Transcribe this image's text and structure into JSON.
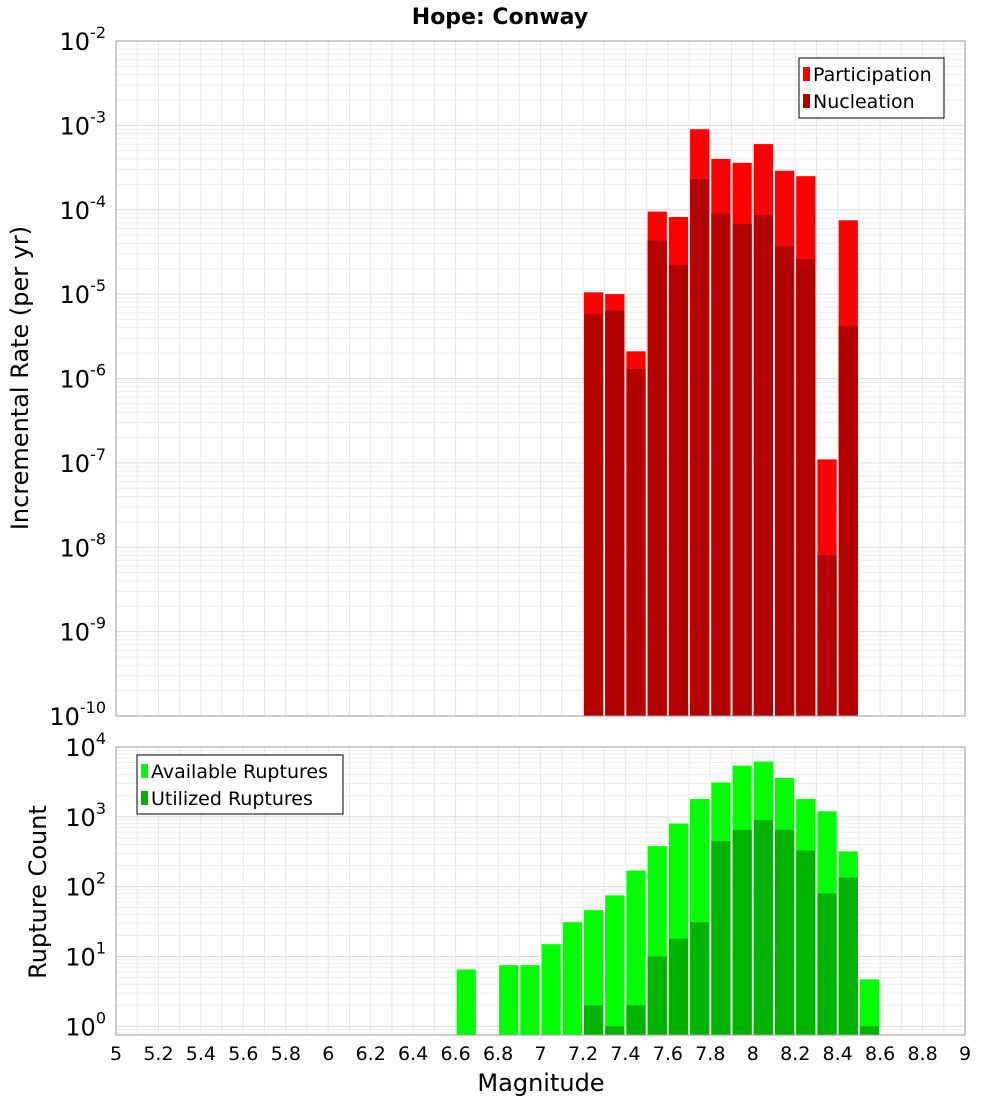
{
  "title": "Hope: Conway",
  "xlabel": "Magnitude",
  "chart_data": [
    {
      "type": "bar",
      "title": "Hope: Conway",
      "ylabel": "Incremental Rate (per yr)",
      "yscale": "log",
      "ylim": [
        1e-10,
        0.01
      ],
      "xlim": [
        5,
        9
      ],
      "grid": true,
      "legend_position": "top-right",
      "bar_width": 0.1,
      "ytick_exponents": [
        "-10",
        "-9",
        "-8",
        "-7",
        "-6",
        "-5",
        "-4",
        "-3",
        "-2"
      ],
      "x": [
        7.25,
        7.35,
        7.45,
        7.55,
        7.65,
        7.75,
        7.85,
        7.95,
        8.05,
        8.15,
        8.25,
        8.35,
        8.45
      ],
      "series": [
        {
          "name": "Participation",
          "color": "#ff0000",
          "values": [
            1.05e-05,
            1e-05,
            2.1e-06,
            9.5e-05,
            8.2e-05,
            0.0009,
            0.0004,
            0.00036,
            0.0006,
            0.00029,
            0.00025,
            1.1e-07,
            7.5e-05
          ]
        },
        {
          "name": "Nucleation",
          "color": "#b30000",
          "values": [
            5.8e-06,
            6.4e-06,
            1.3e-06,
            4.3e-05,
            2.2e-05,
            0.00023,
            9e-05,
            6.8e-05,
            8.6e-05,
            3.7e-05,
            2.6e-05,
            8e-09,
            4.2e-06
          ]
        }
      ]
    },
    {
      "type": "bar",
      "ylabel": "Rupture Count",
      "yscale": "log",
      "ylim": [
        0.75,
        10000
      ],
      "xlim": [
        5,
        9
      ],
      "grid": true,
      "legend_position": "top-left",
      "bar_width": 0.1,
      "ytick_exponents": [
        "0",
        "1",
        "2",
        "3",
        "4"
      ],
      "x": [
        6.65,
        6.75,
        6.85,
        6.95,
        7.05,
        7.15,
        7.25,
        7.35,
        7.45,
        7.55,
        7.65,
        7.75,
        7.85,
        7.95,
        8.05,
        8.15,
        8.25,
        8.35,
        8.45,
        8.55
      ],
      "series": [
        {
          "name": "Available Ruptures",
          "color": "#00ff00",
          "values": [
            6.5,
            null,
            7.5,
            7.5,
            15,
            31,
            46,
            75,
            170,
            380,
            800,
            1800,
            3100,
            5400,
            6200,
            3600,
            1800,
            1200,
            320,
            4.7
          ]
        },
        {
          "name": "Utilized Ruptures",
          "color": "#00b300",
          "values": [
            null,
            null,
            null,
            null,
            null,
            null,
            2,
            1,
            2,
            10,
            18,
            31,
            450,
            650,
            900,
            650,
            330,
            80,
            135,
            1
          ]
        }
      ]
    }
  ],
  "xticks": [
    "5",
    "5.2",
    "5.4",
    "5.6",
    "5.8",
    "6",
    "6.2",
    "6.4",
    "6.6",
    "6.8",
    "7",
    "7.2",
    "7.4",
    "7.6",
    "7.8",
    "8",
    "8.2",
    "8.4",
    "8.6",
    "8.8",
    "9"
  ]
}
